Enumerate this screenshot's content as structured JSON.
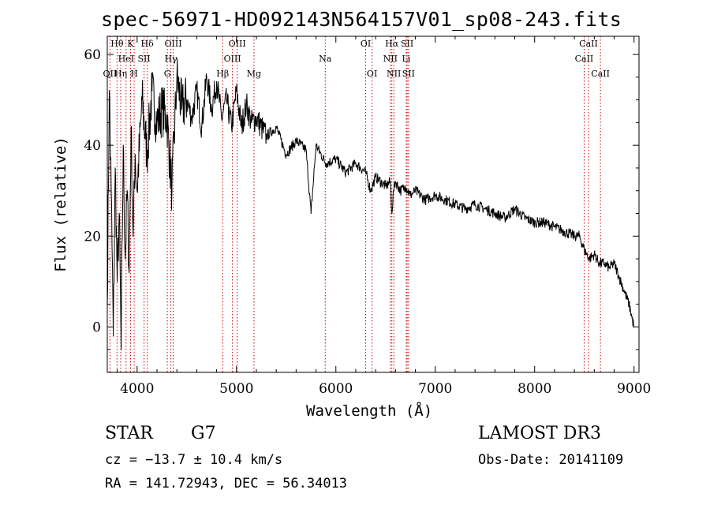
{
  "chart_data": {
    "type": "line",
    "title": "spec-56971-HD092143N564157V01_sp08-243.fits",
    "xlabel": "Wavelength (Å)",
    "ylabel": "Flux (relative)",
    "xlim": [
      3700,
      9050
    ],
    "ylim": [
      -10,
      64
    ],
    "x_ticks": [
      4000,
      5000,
      6000,
      7000,
      8000,
      9000
    ],
    "x_tick_labels": [
      "4000",
      "5000",
      "6000",
      "7000",
      "8000",
      "9000"
    ],
    "y_ticks": [
      0,
      20,
      40,
      60
    ],
    "y_tick_labels": [
      "0",
      "20",
      "40",
      "60"
    ],
    "grid": false,
    "series": [
      {
        "name": "flux",
        "color": "#000000",
        "x": [
          3700,
          3720,
          3740,
          3760,
          3780,
          3800,
          3820,
          3840,
          3860,
          3880,
          3900,
          3920,
          3940,
          3960,
          3980,
          4000,
          4050,
          4100,
          4150,
          4200,
          4250,
          4300,
          4350,
          4400,
          4450,
          4500,
          4550,
          4600,
          4650,
          4700,
          4750,
          4800,
          4850,
          4900,
          4950,
          5000,
          5050,
          5100,
          5150,
          5200,
          5300,
          5400,
          5500,
          5600,
          5700,
          5750,
          5800,
          5900,
          6000,
          6100,
          6200,
          6300,
          6350,
          6400,
          6500,
          6550,
          6563,
          6580,
          6600,
          6650,
          6700,
          6750,
          6800,
          6900,
          7000,
          7100,
          7200,
          7300,
          7400,
          7500,
          7600,
          7700,
          7800,
          7900,
          8000,
          8100,
          8200,
          8300,
          8400,
          8450,
          8500,
          8550,
          8600,
          8650,
          8700,
          8750,
          8800,
          8850,
          8900,
          8950,
          8980,
          9000
        ],
        "y": [
          5,
          52,
          30,
          -2,
          35,
          10,
          25,
          -5,
          40,
          15,
          30,
          12,
          44,
          20,
          38,
          30,
          50,
          38,
          52,
          45,
          48,
          46,
          30,
          55,
          48,
          50,
          46,
          52,
          44,
          55,
          48,
          54,
          46,
          50,
          44,
          52,
          44,
          49,
          45,
          46,
          42,
          44,
          38,
          41,
          39,
          25,
          40,
          36,
          37,
          34,
          36,
          34,
          30,
          33,
          31,
          32,
          25,
          30,
          32,
          30,
          31,
          29,
          30,
          28,
          29,
          28,
          27,
          26,
          27,
          26,
          25,
          24,
          26,
          24,
          23,
          23,
          22,
          21,
          20,
          20,
          17,
          15,
          16,
          14,
          14,
          13,
          14,
          11,
          8,
          5,
          2,
          0
        ]
      }
    ],
    "lines": [
      {
        "wl": 3727,
        "label": "OII",
        "row": 2
      },
      {
        "wl": 3798,
        "label": "Hθ",
        "row": 0
      },
      {
        "wl": 3835,
        "label": "Hη",
        "row": 2
      },
      {
        "wl": 3889,
        "label": "HeI",
        "row": 1
      },
      {
        "wl": 3934,
        "label": "K",
        "row": 0
      },
      {
        "wl": 3970,
        "label": "H",
        "row": 2
      },
      {
        "wl": 4070,
        "label": "SII",
        "row": 1
      },
      {
        "wl": 4102,
        "label": "Hδ",
        "row": 0
      },
      {
        "wl": 4304,
        "label": "G",
        "row": 2
      },
      {
        "wl": 4340,
        "label": "Hγ",
        "row": 1
      },
      {
        "wl": 4363,
        "label": "OIII",
        "row": 0
      },
      {
        "wl": 4861,
        "label": "Hβ",
        "row": 2
      },
      {
        "wl": 4959,
        "label": "OIII",
        "row": 1
      },
      {
        "wl": 5007,
        "label": "OIII",
        "row": 0
      },
      {
        "wl": 5176,
        "label": "Mg",
        "row": 2
      },
      {
        "wl": 5893,
        "label": "Na",
        "row": 1
      },
      {
        "wl": 6300,
        "label": "OI",
        "row": 0
      },
      {
        "wl": 6364,
        "label": "OI",
        "row": 2
      },
      {
        "wl": 6548,
        "label": "NII",
        "row": 1
      },
      {
        "wl": 6563,
        "label": "Hα",
        "row": 0
      },
      {
        "wl": 6583,
        "label": "NII",
        "row": 2
      },
      {
        "wl": 6708,
        "label": "Li",
        "row": 1
      },
      {
        "wl": 6717,
        "label": "SII",
        "row": 0
      },
      {
        "wl": 6731,
        "label": "SII",
        "row": 2
      },
      {
        "wl": 8498,
        "label": "CaII",
        "row": 1
      },
      {
        "wl": 8542,
        "label": "CaII",
        "row": 0
      },
      {
        "wl": 8662,
        "label": "CaII",
        "row": 2
      }
    ],
    "line_color": "#cc0000"
  },
  "info": {
    "class": "STAR",
    "subclass": "G7",
    "survey": "LAMOST DR3",
    "redshift": "cz = −13.7 ± 10.4 km/s",
    "obs_date": "Obs-Date: 20141109",
    "radec": "RA = 141.72943, DEC =  56.34013"
  }
}
